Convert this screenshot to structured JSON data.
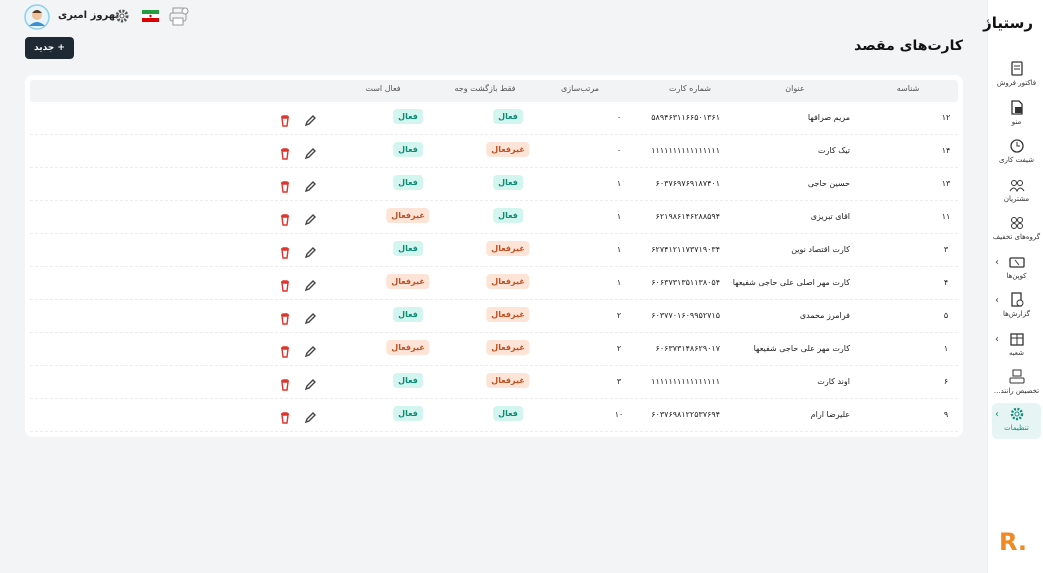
{
  "header": {
    "user_name": "بهروز امیری",
    "page_title": "کارت‌های مقصد",
    "new_button": "جدید"
  },
  "sidebar": {
    "logo": "رستیار",
    "items": [
      "فاکتور فروش",
      "منو",
      "شیفت کاری",
      "مشتریان",
      "گروه‌های تخفیف",
      "کوپن‌ها",
      "گزارش‌ها",
      "شعبه",
      "تخصیص رانند...",
      "تنظیمات"
    ]
  },
  "table": {
    "columns": [
      "شناسه",
      "عنوان",
      "شماره کارت",
      "مرتب‌سازی",
      "فقط بازگشت وجه",
      "فعال است"
    ],
    "rows": [
      [
        "۱۲",
        "مریم صرافها",
        "۵۸۹۴۶۳۱۱۶۶۵۰۱۳۶۱",
        "۰",
        "فعال",
        "فعال"
      ],
      [
        "۱۴",
        "تیک کارت",
        "۱۱۱۱۱۱۱۱۱۱۱۱۱۱۱۱",
        "۰",
        "غیرفعال",
        "فعال"
      ],
      [
        "۱۳",
        "حسین حاجی",
        "۶۰۳۷۶۹۷۶۹۱۸۷۴۰۱",
        "۱",
        "فعال",
        "فعال"
      ],
      [
        "۱۱",
        "اقای تبریزی",
        "۶۲۱۹۸۶۱۴۶۲۸۸۵۹۴",
        "۱",
        "فعال",
        "غیرفعال"
      ],
      [
        "۳",
        "کارت اقتصاد نوین",
        "۶۲۷۴۱۲۱۱۷۳۷۱۹۰۳۴",
        "۱",
        "غیرفعال",
        "فعال"
      ],
      [
        "۴",
        "کارت مهر اصلی علی حاجی شفیعها",
        "۶۰۶۳۷۳۱۳۵۱۱۳۸۰۵۴",
        "۱",
        "غیرفعال",
        "غیرفعال"
      ],
      [
        "۵",
        "فرامرز محمدی",
        "۶۰۳۷۷۰۱۶۰۹۹۵۲۷۱۵",
        "۲",
        "غیرفعال",
        "فعال"
      ],
      [
        "۱",
        "کارت مهر علی حاجی شفیعها",
        "۶۰۶۳۷۳۱۴۸۶۲۹۰۱۷",
        "۲",
        "غیرفعال",
        "غیرفعال"
      ],
      [
        "۶",
        "اوند کارت",
        "۱۱۱۱۱۱۱۱۱۱۱۱۱۱۱۱",
        "۳",
        "غیرفعال",
        "فعال"
      ],
      [
        "۹",
        "علیرضا ارام",
        "۶۰۳۷۶۹۸۱۲۲۵۳۷۶۹۴",
        "۱۰",
        "فعال",
        "فعال"
      ]
    ]
  }
}
